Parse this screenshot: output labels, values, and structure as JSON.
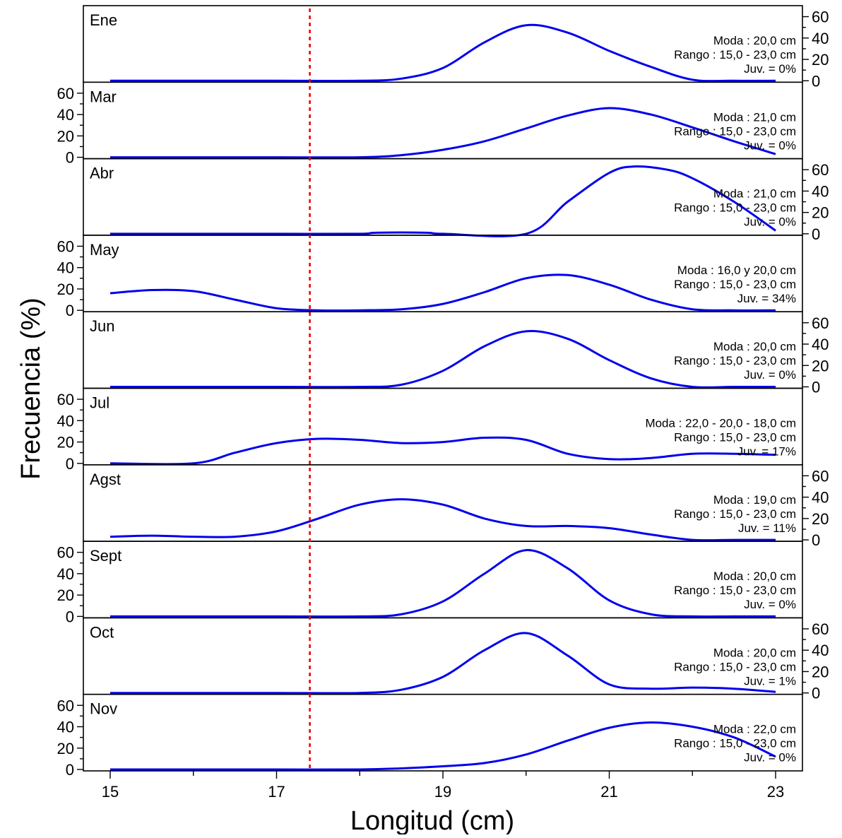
{
  "chart_data": {
    "type": "line",
    "xlabel": "Longitud (cm)",
    "ylabel": "Frecuencia (%)",
    "xlim": [
      15,
      23
    ],
    "ylim": [
      0,
      65
    ],
    "x_ticks": [
      "15",
      "17",
      "19",
      "21",
      "23"
    ],
    "y_ticks": [
      "0",
      "20",
      "40",
      "60"
    ],
    "reference_line_x": 17.4,
    "colors": {
      "curve": "#0000ee",
      "reference_line": "#ee0000"
    },
    "panels": [
      {
        "label": "Ene",
        "annotations": [
          "Moda : 20,0 cm",
          "Rango : 15,0 - 23,0 cm",
          "Juv. = 0%"
        ],
        "points": [
          [
            15,
            0
          ],
          [
            16,
            0
          ],
          [
            17,
            0
          ],
          [
            18,
            0
          ],
          [
            18.5,
            2
          ],
          [
            19,
            12
          ],
          [
            19.5,
            36
          ],
          [
            20,
            52
          ],
          [
            20.5,
            45
          ],
          [
            21,
            28
          ],
          [
            21.5,
            13
          ],
          [
            22,
            1
          ],
          [
            22.5,
            0
          ],
          [
            23,
            0
          ]
        ]
      },
      {
        "label": "Mar",
        "annotations": [
          "Moda : 21,0 cm",
          "Rango : 15,0 - 23,0 cm",
          "Juv. = 0%"
        ],
        "points": [
          [
            15,
            0
          ],
          [
            16,
            0
          ],
          [
            17,
            0
          ],
          [
            18,
            0
          ],
          [
            18.5,
            2
          ],
          [
            19,
            7
          ],
          [
            19.5,
            15
          ],
          [
            20,
            27
          ],
          [
            20.5,
            39
          ],
          [
            21,
            46
          ],
          [
            21.5,
            40
          ],
          [
            22,
            28
          ],
          [
            22.5,
            15
          ],
          [
            23,
            3
          ]
        ]
      },
      {
        "label": "Abr",
        "annotations": [
          "Moda : 21,0 cm",
          "Rango : 15,0 - 23,0 cm",
          "Juv. = 0%"
        ],
        "points": [
          [
            15,
            0
          ],
          [
            16,
            0
          ],
          [
            17,
            0
          ],
          [
            18,
            0
          ],
          [
            18.2,
            1
          ],
          [
            18.8,
            1
          ],
          [
            19,
            0
          ],
          [
            20,
            0
          ],
          [
            20.5,
            30
          ],
          [
            21,
            57
          ],
          [
            21.3,
            63
          ],
          [
            21.7,
            60
          ],
          [
            22,
            52
          ],
          [
            22.5,
            30
          ],
          [
            23,
            3
          ]
        ]
      },
      {
        "label": "May",
        "annotations": [
          "Moda : 16,0 y 20,0 cm",
          "Rango : 15,0 - 23,0 cm",
          "Juv. = 34%"
        ],
        "points": [
          [
            15,
            16
          ],
          [
            15.5,
            19
          ],
          [
            16,
            18
          ],
          [
            16.5,
            10
          ],
          [
            17,
            2
          ],
          [
            17.5,
            0
          ],
          [
            18,
            0
          ],
          [
            18.5,
            1
          ],
          [
            19,
            6
          ],
          [
            19.5,
            17
          ],
          [
            20,
            30
          ],
          [
            20.5,
            33
          ],
          [
            21,
            24
          ],
          [
            21.5,
            10
          ],
          [
            22,
            1
          ],
          [
            22.5,
            0
          ],
          [
            23,
            0
          ]
        ]
      },
      {
        "label": "Jun",
        "annotations": [
          "Moda : 20,0 cm",
          "Rango : 15,0 - 23,0 cm",
          "Juv. = 0%"
        ],
        "points": [
          [
            15,
            0
          ],
          [
            16,
            0
          ],
          [
            17,
            0
          ],
          [
            18,
            0
          ],
          [
            18.5,
            2
          ],
          [
            19,
            15
          ],
          [
            19.5,
            38
          ],
          [
            20,
            52
          ],
          [
            20.5,
            45
          ],
          [
            21,
            25
          ],
          [
            21.5,
            8
          ],
          [
            22,
            0
          ],
          [
            22.5,
            0
          ],
          [
            23,
            0
          ]
        ]
      },
      {
        "label": "Jul",
        "annotations": [
          "Moda : 22,0 - 20,0 - 18,0 cm",
          "Rango : 15,0 - 23,0 cm",
          "Juv. = 17%"
        ],
        "points": [
          [
            15,
            0
          ],
          [
            16,
            0
          ],
          [
            16.5,
            10
          ],
          [
            17,
            19
          ],
          [
            17.5,
            23
          ],
          [
            18,
            22
          ],
          [
            18.5,
            19
          ],
          [
            19,
            20
          ],
          [
            19.5,
            24
          ],
          [
            20,
            22
          ],
          [
            20.5,
            9
          ],
          [
            21,
            4
          ],
          [
            21.5,
            5
          ],
          [
            22,
            9
          ],
          [
            22.5,
            9
          ],
          [
            23,
            8
          ]
        ]
      },
      {
        "label": "Agst",
        "annotations": [
          "Moda : 19,0 cm",
          "Rango : 15,0 - 23,0 cm",
          "Juv. = 11%"
        ],
        "points": [
          [
            15,
            3
          ],
          [
            15.5,
            4
          ],
          [
            16,
            3
          ],
          [
            16.5,
            3
          ],
          [
            17,
            8
          ],
          [
            17.5,
            20
          ],
          [
            18,
            33
          ],
          [
            18.5,
            38
          ],
          [
            19,
            33
          ],
          [
            19.5,
            20
          ],
          [
            20,
            13
          ],
          [
            20.5,
            13
          ],
          [
            21,
            11
          ],
          [
            21.5,
            5
          ],
          [
            22,
            0
          ],
          [
            22.5,
            0
          ],
          [
            23,
            0
          ]
        ]
      },
      {
        "label": "Sept",
        "annotations": [
          "Moda : 20,0 cm",
          "Rango : 15,0 - 23,0 cm",
          "Juv. = 0%"
        ],
        "points": [
          [
            15,
            0
          ],
          [
            16,
            0
          ],
          [
            17,
            0
          ],
          [
            18,
            0
          ],
          [
            18.5,
            2
          ],
          [
            19,
            14
          ],
          [
            19.5,
            40
          ],
          [
            20,
            62
          ],
          [
            20.5,
            45
          ],
          [
            21,
            15
          ],
          [
            21.5,
            2
          ],
          [
            22,
            0
          ],
          [
            22.5,
            0
          ],
          [
            23,
            0
          ]
        ]
      },
      {
        "label": "Oct",
        "annotations": [
          "Moda : 20,0 cm",
          "Rango : 15,0 - 23,0 cm",
          "Juv. = 1%"
        ],
        "points": [
          [
            15,
            0
          ],
          [
            16,
            0
          ],
          [
            17,
            0
          ],
          [
            18,
            0
          ],
          [
            18.5,
            3
          ],
          [
            19,
            15
          ],
          [
            19.5,
            40
          ],
          [
            20,
            56
          ],
          [
            20.5,
            35
          ],
          [
            21,
            8
          ],
          [
            21.5,
            4
          ],
          [
            22,
            5
          ],
          [
            22.5,
            4
          ],
          [
            23,
            1
          ]
        ]
      },
      {
        "label": "Nov",
        "annotations": [
          "Moda : 22,0 cm",
          "Rango : 15,0 - 23,0 cm",
          "Juv. = 0%"
        ],
        "points": [
          [
            15,
            0
          ],
          [
            16,
            0
          ],
          [
            17,
            0
          ],
          [
            18,
            0
          ],
          [
            18.5,
            1
          ],
          [
            19,
            3
          ],
          [
            19.5,
            6
          ],
          [
            20,
            14
          ],
          [
            20.5,
            27
          ],
          [
            21,
            39
          ],
          [
            21.5,
            44
          ],
          [
            22,
            40
          ],
          [
            22.5,
            30
          ],
          [
            23,
            12
          ]
        ]
      }
    ]
  }
}
